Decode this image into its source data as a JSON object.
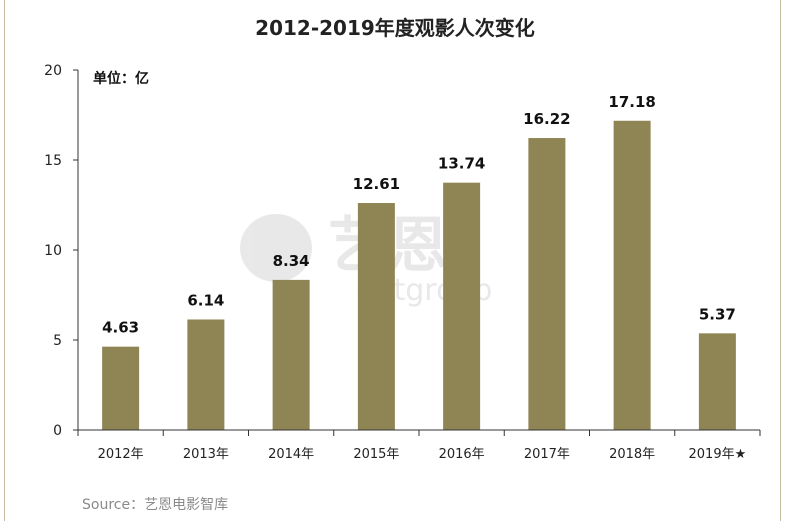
{
  "chart_data": {
    "type": "bar",
    "title": "2012-2019年度观影人次变化",
    "unit_label": "单位：亿",
    "categories": [
      "2012年",
      "2013年",
      "2014年",
      "2015年",
      "2016年",
      "2017年",
      "2018年",
      "2019年★"
    ],
    "values": [
      4.63,
      6.14,
      8.34,
      12.61,
      13.74,
      16.22,
      17.18,
      5.37
    ],
    "data_labels": [
      "4.63",
      "6.14",
      "8.34",
      "12.61",
      "13.74",
      "16.22",
      "17.18",
      "5.37"
    ],
    "ylim": [
      0,
      20
    ],
    "yticks": [
      0,
      5,
      10,
      15,
      20
    ],
    "grid": false,
    "legend": "none",
    "bar_color": "#8f8453"
  },
  "source": "Source：艺恩电影智库",
  "watermark": {
    "brand_cn": "艺恩",
    "brand_en": "entgroup"
  },
  "colors": {
    "frame": "#c8bfa0",
    "axis": "#333333"
  }
}
